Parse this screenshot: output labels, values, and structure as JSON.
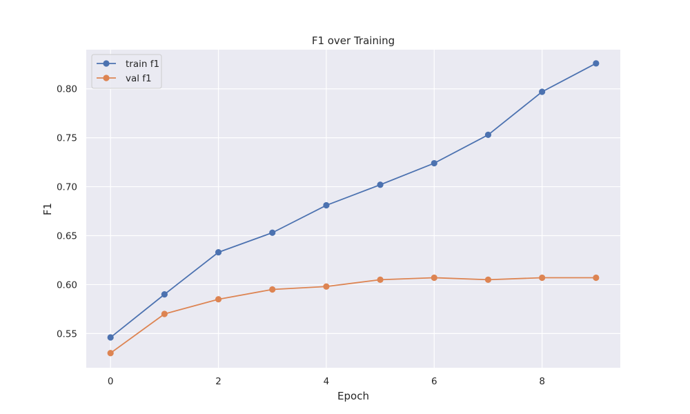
{
  "chart_data": {
    "type": "line",
    "title": "F1 over Training",
    "xlabel": "Epoch",
    "ylabel": "F1",
    "x": [
      0,
      1,
      2,
      3,
      4,
      5,
      6,
      7,
      8,
      9
    ],
    "xlim": [
      -0.45,
      9.45
    ],
    "ylim": [
      0.515,
      0.84
    ],
    "xticks": [
      0,
      2,
      4,
      6,
      8
    ],
    "xtick_labels": [
      "0",
      "2",
      "4",
      "6",
      "8"
    ],
    "yticks": [
      0.55,
      0.6,
      0.65,
      0.7,
      0.75,
      0.8
    ],
    "ytick_labels": [
      "0.55",
      "0.60",
      "0.65",
      "0.70",
      "0.75",
      "0.80"
    ],
    "grid": true,
    "legend_position": "top-left",
    "series": [
      {
        "name": "train f1",
        "color": "#4c72b0",
        "values": [
          0.546,
          0.59,
          0.633,
          0.653,
          0.681,
          0.702,
          0.724,
          0.753,
          0.797,
          0.826
        ]
      },
      {
        "name": "val f1",
        "color": "#dd8452",
        "values": [
          0.53,
          0.57,
          0.585,
          0.595,
          0.598,
          0.605,
          0.607,
          0.605,
          0.607,
          0.607
        ]
      }
    ],
    "plot_background": "#eaeaf2",
    "grid_color": "#ffffff"
  }
}
